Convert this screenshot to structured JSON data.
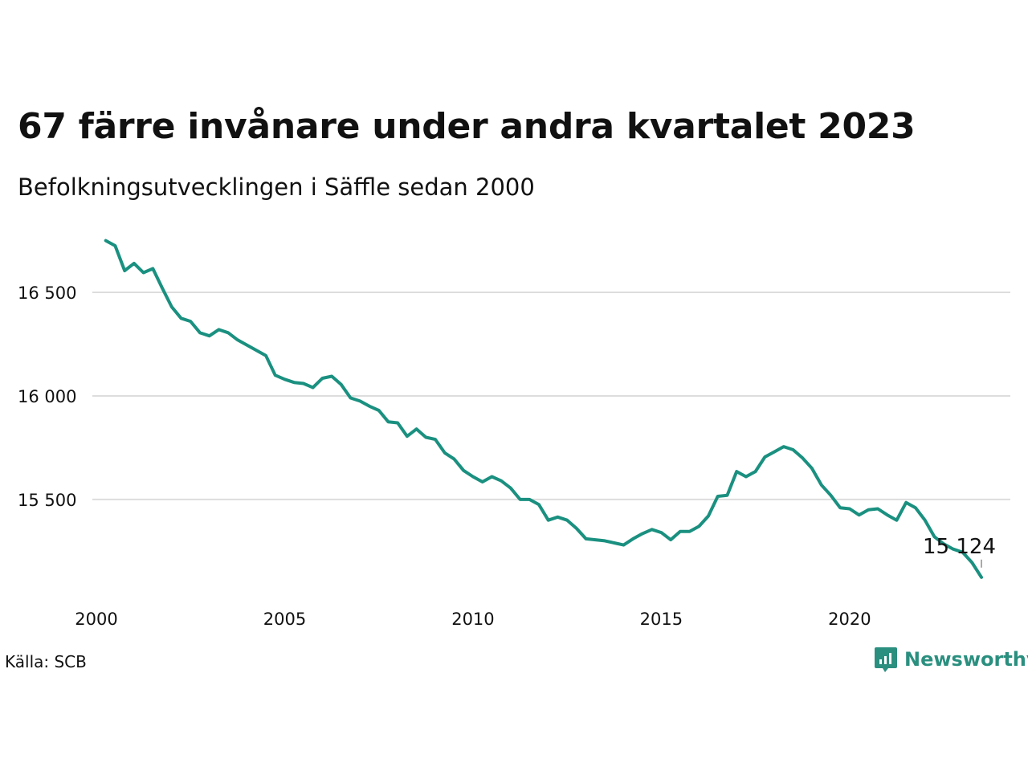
{
  "title": "67 färre invånare under andra kvartalet 2023",
  "subtitle": "Befolkningsutvecklingen i Säffle sedan 2000",
  "source": "Källa: SCB",
  "brand": {
    "name": "Newsworthy",
    "icon": "newsworthy-logo-icon"
  },
  "colors": {
    "line": "#1a9080",
    "grid": "#dddddd",
    "brand": "#2a8f7f"
  },
  "chart_data": {
    "type": "line",
    "x_ticks": [
      2000,
      2005,
      2010,
      2015,
      2020
    ],
    "y_ticks": [
      15500,
      16000,
      16500
    ],
    "y_tick_labels": [
      "15 500",
      "16 000",
      "16 500"
    ],
    "xlim": [
      2000,
      2023.5
    ],
    "ylim": [
      15100,
      16760
    ],
    "grid": "horizontal",
    "end_label": "15 124",
    "series": [
      {
        "values": [
          [
            2000.25,
            16750
          ],
          [
            2000.5,
            16725
          ],
          [
            2000.75,
            16605
          ],
          [
            2001.0,
            16640
          ],
          [
            2001.25,
            16595
          ],
          [
            2001.5,
            16615
          ],
          [
            2001.75,
            16520
          ],
          [
            2002.0,
            16430
          ],
          [
            2002.25,
            16375
          ],
          [
            2002.5,
            16360
          ],
          [
            2002.75,
            16305
          ],
          [
            2003.0,
            16290
          ],
          [
            2003.25,
            16320
          ],
          [
            2003.5,
            16305
          ],
          [
            2003.75,
            16270
          ],
          [
            2004.0,
            16245
          ],
          [
            2004.25,
            16220
          ],
          [
            2004.5,
            16195
          ],
          [
            2004.75,
            16100
          ],
          [
            2005.0,
            16080
          ],
          [
            2005.25,
            16065
          ],
          [
            2005.5,
            16060
          ],
          [
            2005.75,
            16040
          ],
          [
            2006.0,
            16085
          ],
          [
            2006.25,
            16095
          ],
          [
            2006.5,
            16055
          ],
          [
            2006.75,
            15990
          ],
          [
            2007.0,
            15975
          ],
          [
            2007.25,
            15950
          ],
          [
            2007.5,
            15930
          ],
          [
            2007.75,
            15875
          ],
          [
            2008.0,
            15870
          ],
          [
            2008.25,
            15805
          ],
          [
            2008.5,
            15840
          ],
          [
            2008.75,
            15800
          ],
          [
            2009.0,
            15790
          ],
          [
            2009.25,
            15725
          ],
          [
            2009.5,
            15695
          ],
          [
            2009.75,
            15640
          ],
          [
            2010.0,
            15610
          ],
          [
            2010.25,
            15585
          ],
          [
            2010.5,
            15610
          ],
          [
            2010.75,
            15590
          ],
          [
            2011.0,
            15555
          ],
          [
            2011.25,
            15500
          ],
          [
            2011.5,
            15500
          ],
          [
            2011.75,
            15475
          ],
          [
            2012.0,
            15400
          ],
          [
            2012.25,
            15415
          ],
          [
            2012.5,
            15400
          ],
          [
            2012.75,
            15360
          ],
          [
            2013.0,
            15310
          ],
          [
            2013.25,
            15305
          ],
          [
            2013.5,
            15300
          ],
          [
            2013.75,
            15290
          ],
          [
            2014.0,
            15280
          ],
          [
            2014.25,
            15310
          ],
          [
            2014.5,
            15335
          ],
          [
            2014.75,
            15355
          ],
          [
            2015.0,
            15340
          ],
          [
            2015.25,
            15305
          ],
          [
            2015.5,
            15345
          ],
          [
            2015.75,
            15345
          ],
          [
            2016.0,
            15370
          ],
          [
            2016.25,
            15420
          ],
          [
            2016.5,
            15515
          ],
          [
            2016.75,
            15520
          ],
          [
            2017.0,
            15635
          ],
          [
            2017.25,
            15610
          ],
          [
            2017.5,
            15635
          ],
          [
            2017.75,
            15705
          ],
          [
            2018.0,
            15730
          ],
          [
            2018.25,
            15755
          ],
          [
            2018.5,
            15740
          ],
          [
            2018.75,
            15700
          ],
          [
            2019.0,
            15650
          ],
          [
            2019.25,
            15570
          ],
          [
            2019.5,
            15520
          ],
          [
            2019.75,
            15460
          ],
          [
            2020.0,
            15455
          ],
          [
            2020.25,
            15425
          ],
          [
            2020.5,
            15450
          ],
          [
            2020.75,
            15455
          ],
          [
            2021.0,
            15425
          ],
          [
            2021.25,
            15400
          ],
          [
            2021.5,
            15485
          ],
          [
            2021.75,
            15460
          ],
          [
            2022.0,
            15400
          ],
          [
            2022.25,
            15320
          ],
          [
            2022.5,
            15285
          ],
          [
            2022.75,
            15260
          ],
          [
            2023.0,
            15245
          ],
          [
            2023.25,
            15195
          ],
          [
            2023.5,
            15124
          ]
        ]
      }
    ]
  }
}
